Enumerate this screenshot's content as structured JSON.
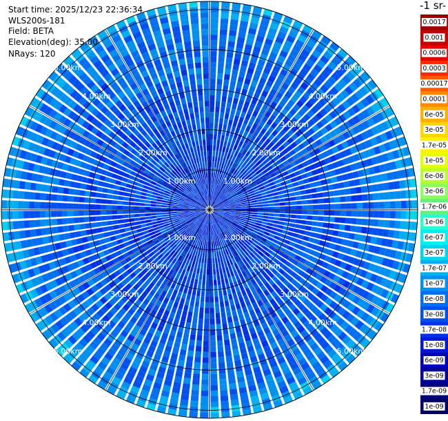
{
  "header": {
    "start_time": "Start time: 2025/12/23 22:36:34",
    "instrument": "WLS200s-181",
    "field": "Field: BETA",
    "elevation": "Elevation(deg): 35.00",
    "nrays": "NRays: 120"
  },
  "colorbar": {
    "title": "-1 sr-",
    "labels": [
      "0.0017",
      "0.001",
      "0.0006",
      "0.0003",
      "0.00017",
      "0.0001",
      "6e-05",
      "3e-05",
      "1.7e-05",
      "1e-05",
      "6e-06",
      "3e-06",
      "1.7e-06",
      "1e-06",
      "6e-07",
      "3e-07",
      "1.7e-07",
      "1e-07",
      "6e-08",
      "3e-08",
      "1.7e-08",
      "1e-08",
      "6e-09",
      "3e-09",
      "1.7e-09",
      "1e-09"
    ],
    "colors": [
      "#9b0000",
      "#c40000",
      "#e80000",
      "#ff2a00",
      "#ff5a00",
      "#ff8a00",
      "#ffb000",
      "#ffd400",
      "#fff200",
      "#e6ff00",
      "#b8ff2a",
      "#8cff5a",
      "#66f07a",
      "#2bfbd0",
      "#00f0f0",
      "#00d2f0",
      "#00b0f0",
      "#0090f0",
      "#0070f0",
      "#0050f0",
      "#0030e8",
      "#0018d0",
      "#0000b8",
      "#00009a",
      "#00007c",
      "#000066"
    ]
  },
  "chart_data": {
    "type": "heatmap",
    "projection": "polar-ppi",
    "field": "BETA",
    "elevation_deg": 35.0,
    "nrays": 120,
    "range_rings_km": [
      1,
      2,
      3,
      4,
      5
    ],
    "ring_labels": [
      "1.00km",
      "2.00km",
      "3.00km",
      "4.00km",
      "5.00km"
    ],
    "max_range_km": 5.2,
    "gridlines": true,
    "dominant_value_range": [
      "1e-08",
      "1e-07"
    ]
  }
}
